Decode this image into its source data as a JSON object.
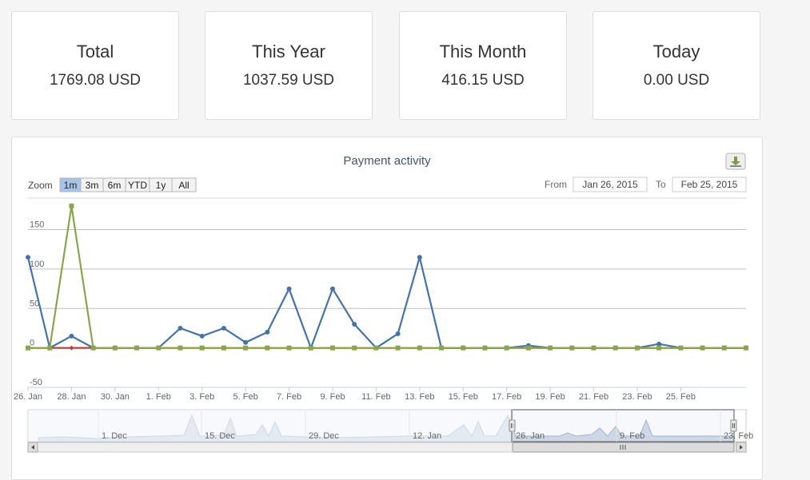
{
  "cards": [
    {
      "label": "Total",
      "value": "1769.08 USD"
    },
    {
      "label": "This Year",
      "value": "1037.59 USD"
    },
    {
      "label": "This Month",
      "value": "416.15 USD"
    },
    {
      "label": "Today",
      "value": "0.00 USD"
    }
  ],
  "chart_data": {
    "type": "line",
    "title": "Payment activity",
    "zoom": {
      "label": "Zoom",
      "buttons": [
        "1m",
        "3m",
        "6m",
        "YTD",
        "1y",
        "All"
      ],
      "selected": "1m"
    },
    "range": {
      "from_label": "From",
      "from": "Jan 26, 2015",
      "to_label": "To",
      "to": "Feb 25, 2015"
    },
    "ylim": [
      -50,
      190
    ],
    "y_ticks": [
      -50,
      0,
      50,
      100,
      150
    ],
    "x_ticks": [
      "26. Jan",
      "28. Jan",
      "30. Jan",
      "1. Feb",
      "3. Feb",
      "5. Feb",
      "7. Feb",
      "9. Feb",
      "11. Feb",
      "13. Feb",
      "15. Feb",
      "17. Feb",
      "19. Feb",
      "21. Feb",
      "23. Feb",
      "25. Feb"
    ],
    "grid": true,
    "series": [
      {
        "color": "#4572a7",
        "values": [
          115,
          0,
          15,
          0,
          0,
          0,
          0,
          25,
          15,
          25,
          7,
          20,
          75,
          0,
          75,
          30,
          0,
          18,
          115,
          0,
          0,
          0,
          0,
          3,
          0,
          0,
          0,
          0,
          0,
          5,
          0,
          0,
          0,
          0
        ]
      },
      {
        "color": "#aa4643",
        "values": [
          0,
          0,
          0,
          0,
          0,
          0,
          0,
          0,
          0,
          0,
          0,
          0,
          0,
          0,
          0,
          0,
          0,
          0,
          0,
          0,
          0,
          0,
          0,
          0,
          0,
          0,
          0,
          0,
          0,
          0,
          0,
          0,
          0,
          0
        ]
      },
      {
        "color": "#89a54e",
        "values": [
          0,
          0,
          180,
          0,
          0,
          0,
          0,
          0,
          0,
          0,
          0,
          0,
          0,
          0,
          0,
          0,
          0,
          0,
          0,
          0,
          0,
          0,
          0,
          0,
          0,
          0,
          0,
          0,
          0,
          0,
          0,
          0,
          0,
          0
        ]
      }
    ],
    "navigator": {
      "labels": [
        "1. Dec",
        "15. Dec",
        "29. Dec",
        "12. Jan",
        "26. Jan",
        "9. Feb",
        "23. Feb"
      ]
    }
  }
}
